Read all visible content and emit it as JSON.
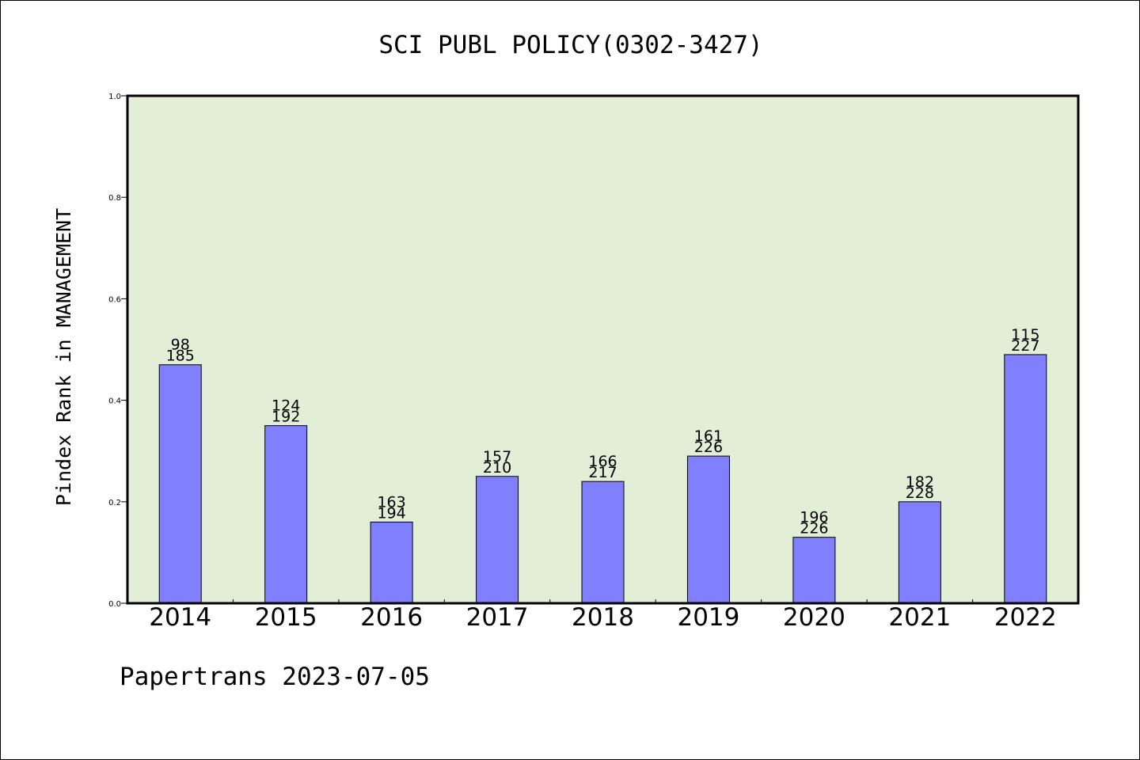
{
  "chart_data": {
    "type": "bar",
    "title": "SCI PUBL POLICY(0302-3427)",
    "ylabel": "Pindex Rank in MANAGEMENT",
    "xlabel": "",
    "ylim": [
      0,
      1.0
    ],
    "yticks": [
      "0.0",
      "0.2",
      "0.4",
      "0.6",
      "0.8",
      "1.0"
    ],
    "categories": [
      "2014",
      "2015",
      "2016",
      "2017",
      "2018",
      "2019",
      "2020",
      "2021",
      "2022"
    ],
    "values": [
      0.47,
      0.35,
      0.16,
      0.25,
      0.24,
      0.29,
      0.13,
      0.2,
      0.49
    ],
    "rank_labels": [
      "98",
      "124",
      "163",
      "157",
      "166",
      "161",
      "196",
      "182",
      "115"
    ],
    "total_labels": [
      "185",
      "192",
      "194",
      "210",
      "217",
      "226",
      "226",
      "228",
      "227"
    ],
    "grid": false,
    "plot_background": "#e2efd6",
    "bar_color": "#8080ff"
  },
  "footer": {
    "text": "Papertrans 2023-07-05"
  }
}
